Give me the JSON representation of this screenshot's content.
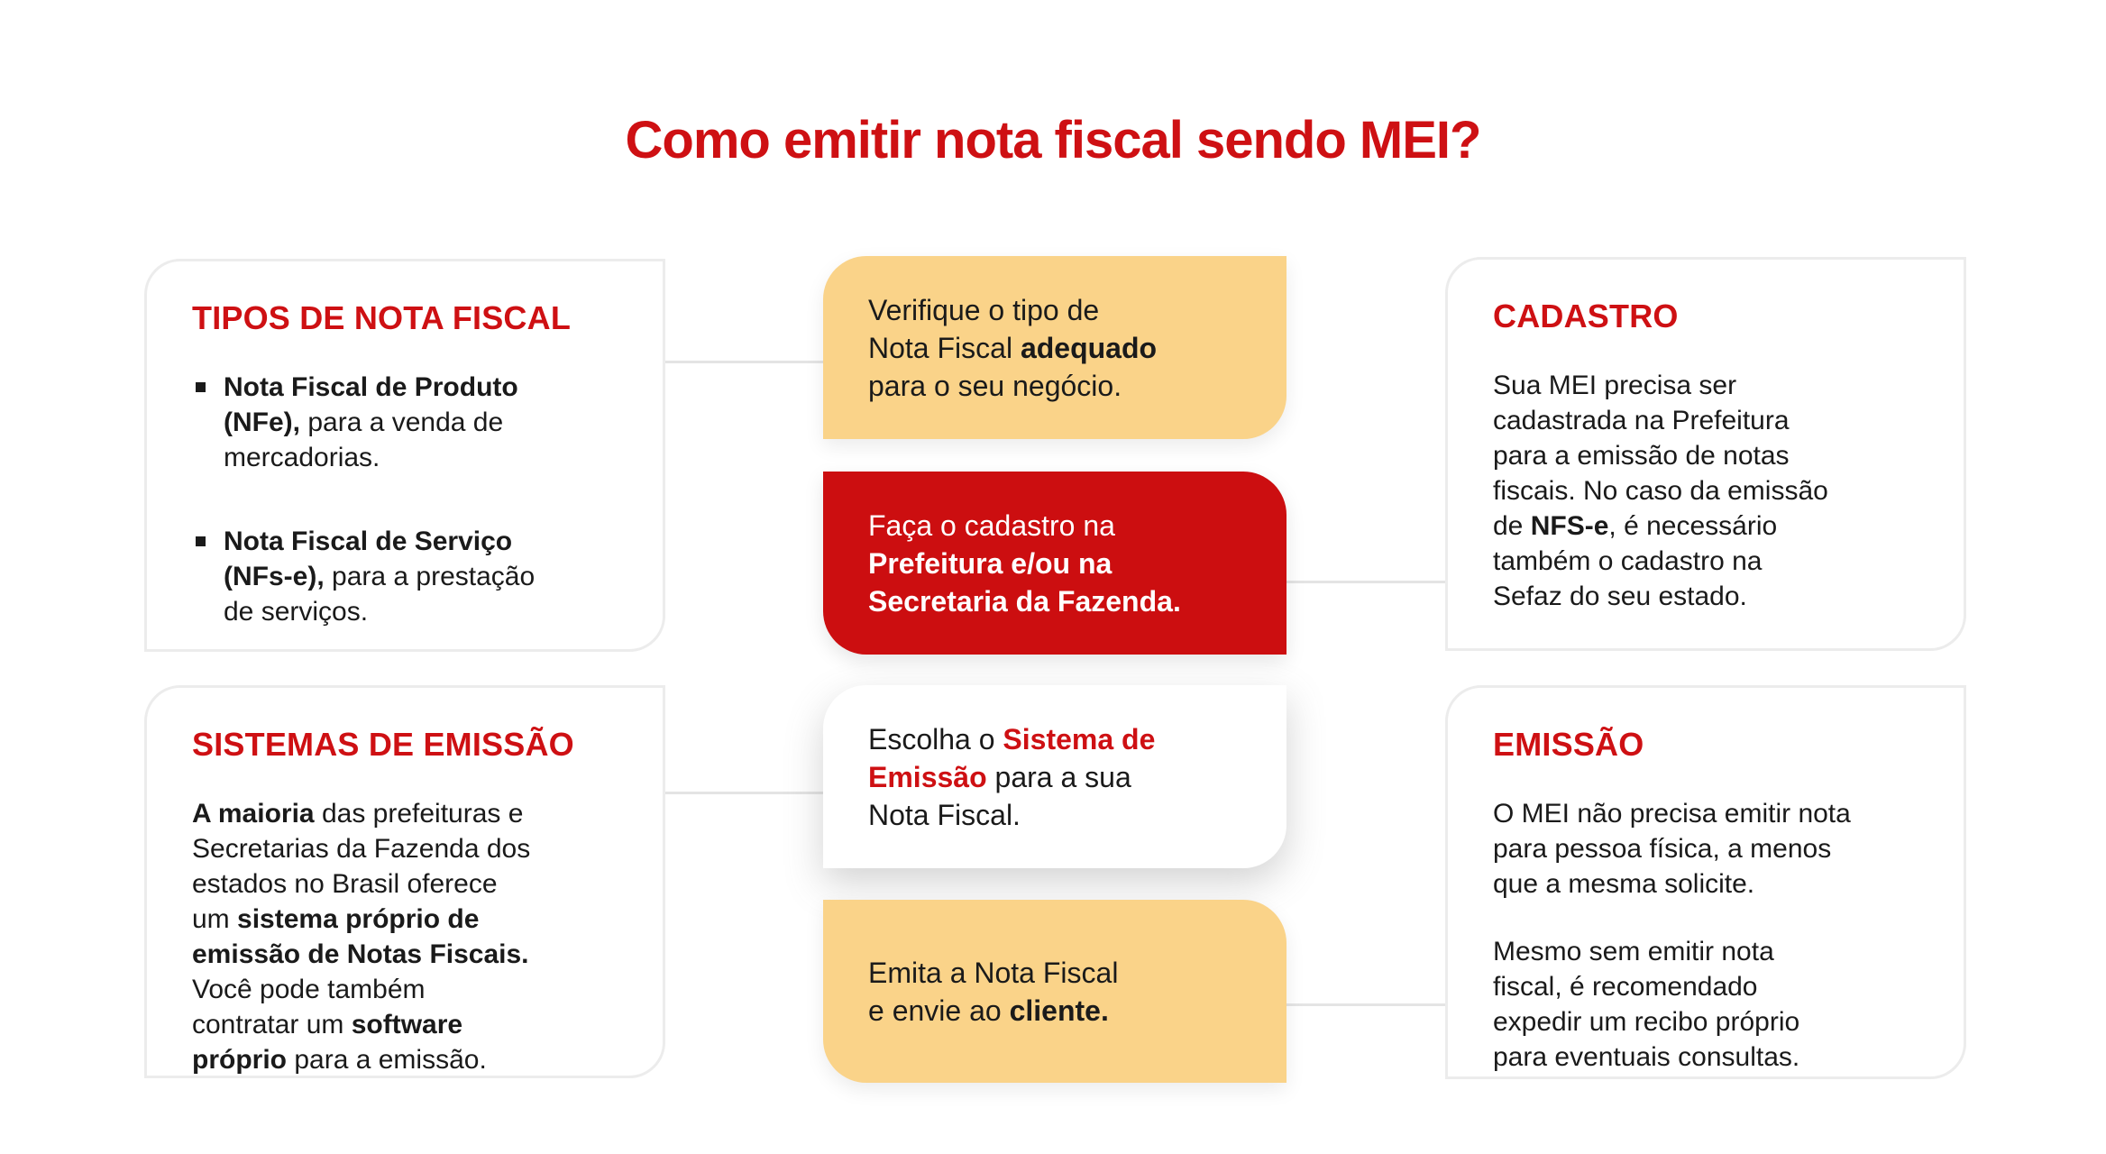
{
  "page": {
    "title": "Como emitir nota fiscal sendo MEI?",
    "language": "pt-BR"
  },
  "colors": {
    "accent_red": "#CE1013",
    "step_red_background": "#CC0E10",
    "step_yellow_background": "#FAD389",
    "text": "#1A1A1A",
    "card_border": "#ECECEC",
    "connector_line": "#E4E4E4"
  },
  "cards": {
    "tipos": {
      "heading": "TIPOS DE NOTA FISCAL",
      "items": [
        {
          "segments": [
            {
              "t": "Nota Fiscal de Produto\n(NFe),",
              "b": true
            },
            {
              "t": " para a venda de\nmercadorias.",
              "b": false
            }
          ]
        },
        {
          "segments": [
            {
              "t": "Nota Fiscal de Serviço\n(NFs-e),",
              "b": true
            },
            {
              "t": " para a prestação\nde serviços.",
              "b": false
            }
          ]
        }
      ]
    },
    "sistemas": {
      "heading": "SISTEMAS DE EMISSÃO",
      "body": [
        {
          "t": "A maioria",
          "b": true
        },
        {
          "t": " das prefeituras e\nSecretarias da Fazenda dos\nestados no Brasil oferece\num ",
          "b": false
        },
        {
          "t": "sistema próprio de\nemissão de Notas Fiscais.",
          "b": true
        },
        {
          "t": "\nVocê pode também\ncontratar um ",
          "b": false
        },
        {
          "t": "software\npróprio",
          "b": true
        },
        {
          "t": " para a emissão.",
          "b": false
        }
      ]
    },
    "cadastro": {
      "heading": "CADASTRO",
      "body": [
        {
          "t": "Sua MEI precisa ser\ncadastrada na Prefeitura\npara a emissão de notas\nfiscais. No caso da emissão\nde ",
          "b": false
        },
        {
          "t": "NFS-e",
          "b": true
        },
        {
          "t": ", é necessário\ntambém o cadastro na\nSefaz do seu estado.",
          "b": false
        }
      ]
    },
    "emissao": {
      "heading": "EMISSÃO",
      "body1": [
        {
          "t": "O MEI não precisa emitir nota\npara pessoa física, a menos\nque a mesma solicite.",
          "b": false
        }
      ],
      "body2": [
        {
          "t": "Mesmo sem emitir nota\nfiscal, é recomendado\nexpedir um recibo próprio\npara eventuais consultas.",
          "b": false
        }
      ]
    }
  },
  "steps": [
    {
      "variant": "yellow",
      "segments": [
        {
          "t": "Verifique o tipo de\nNota Fiscal ",
          "b": false
        },
        {
          "t": "adequado",
          "b": true
        },
        {
          "t": "\npara o seu negócio.",
          "b": false
        }
      ]
    },
    {
      "variant": "red",
      "segments": [
        {
          "t": "Faça o cadastro na\n",
          "b": false
        },
        {
          "t": "Prefeitura e/ou na\nSecretaria da Fazenda.",
          "b": true
        }
      ]
    },
    {
      "variant": "white",
      "segments": [
        {
          "t": "Escolha o ",
          "b": false
        },
        {
          "t": "Sistema de\nEmissão",
          "b": true,
          "c": "red"
        },
        {
          "t": " para a sua\nNota Fiscal.",
          "b": false
        }
      ]
    },
    {
      "variant": "yellow",
      "segments": [
        {
          "t": "Emita a Nota Fiscal\ne envie ao ",
          "b": false
        },
        {
          "t": "cliente.",
          "b": true
        }
      ]
    }
  ]
}
